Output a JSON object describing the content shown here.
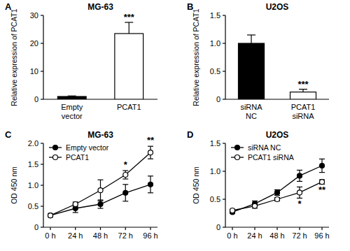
{
  "chart_data": [
    {
      "type": "bar",
      "panel_label": "A",
      "title": "MG-63",
      "y_label": "Relative expression of PCAT1",
      "categories": [
        "Empty vector",
        "PCAT1"
      ],
      "values": [
        1.0,
        23.5
      ],
      "errors": [
        0.2,
        4.0
      ],
      "colors": [
        "#000000",
        "#ffffff"
      ],
      "ylim": [
        0,
        30
      ],
      "yticks": [
        0,
        10,
        20,
        30
      ],
      "annotations": [
        {
          "text": "***",
          "category": "PCAT1"
        }
      ]
    },
    {
      "type": "bar",
      "panel_label": "B",
      "title": "U2OS",
      "y_label": "Relative expression of PCAT1",
      "categories": [
        "siRNA NC",
        "PCAT1 siRNA"
      ],
      "values": [
        1.0,
        0.13
      ],
      "errors": [
        0.15,
        0.05
      ],
      "colors": [
        "#000000",
        "#ffffff"
      ],
      "ylim": [
        0,
        1.5
      ],
      "yticks": [
        0,
        0.5,
        {
          "value": 1,
          "label": "1.0"
        },
        1.5
      ],
      "annotations": [
        {
          "text": "***",
          "category": "PCAT1 siRNA"
        }
      ]
    },
    {
      "type": "line",
      "panel_label": "C",
      "title": "MG-63",
      "y_label": "OD 450 nm",
      "categories": [
        "0 h",
        "24 h",
        "48 h",
        "72 h",
        "96 h"
      ],
      "series": [
        {
          "name": "Empty vector",
          "color": "#000000",
          "marker": "filled-circle",
          "values": [
            0.28,
            0.45,
            0.55,
            0.82,
            1.02
          ],
          "errors": [
            0.03,
            0.1,
            0.1,
            0.2,
            0.2
          ]
        },
        {
          "name": "PCAT1",
          "color": "#000000",
          "marker": "open-circle",
          "values": [
            0.28,
            0.55,
            0.88,
            1.25,
            1.78
          ],
          "errors": [
            0.03,
            0.05,
            0.25,
            0.1,
            0.15
          ]
        }
      ],
      "ylim": [
        0,
        2
      ],
      "yticks": [
        0,
        0.5,
        {
          "value": 1,
          "label": "1.0"
        },
        1.5,
        {
          "value": 2,
          "label": "2.0"
        }
      ],
      "legend": "top-left",
      "annotations": [
        {
          "text": "*",
          "category": "72 h",
          "series": "PCAT1"
        },
        {
          "text": "**",
          "category": "96 h",
          "series": "PCAT1"
        }
      ]
    },
    {
      "type": "line",
      "panel_label": "D",
      "title": "U2OS",
      "y_label": "OD 450 nm",
      "categories": [
        "0 h",
        "24 h",
        "48 h",
        "72 h",
        "96 h"
      ],
      "series": [
        {
          "name": "siRNA NC",
          "color": "#000000",
          "marker": "filled-circle",
          "values": [
            0.27,
            0.42,
            0.62,
            0.92,
            1.1
          ],
          "errors": [
            0.02,
            0.05,
            0.05,
            0.1,
            0.12
          ]
        },
        {
          "name": "PCAT1 siRNA",
          "color": "#000000",
          "marker": "open-circle",
          "values": [
            0.3,
            0.38,
            0.5,
            0.62,
            0.81
          ],
          "errors": [
            0.02,
            0.04,
            0.03,
            0.1,
            0.04
          ]
        }
      ],
      "ylim": [
        0,
        1.5
      ],
      "yticks": [
        0,
        0.5,
        {
          "value": 1,
          "label": "1.0"
        },
        1.5
      ],
      "legend": "top-left",
      "annotations": [
        {
          "text": "*",
          "category": "72 h",
          "series": "PCAT1 siRNA"
        },
        {
          "text": "**",
          "category": "96 h",
          "series": "PCAT1 siRNA"
        }
      ]
    }
  ]
}
